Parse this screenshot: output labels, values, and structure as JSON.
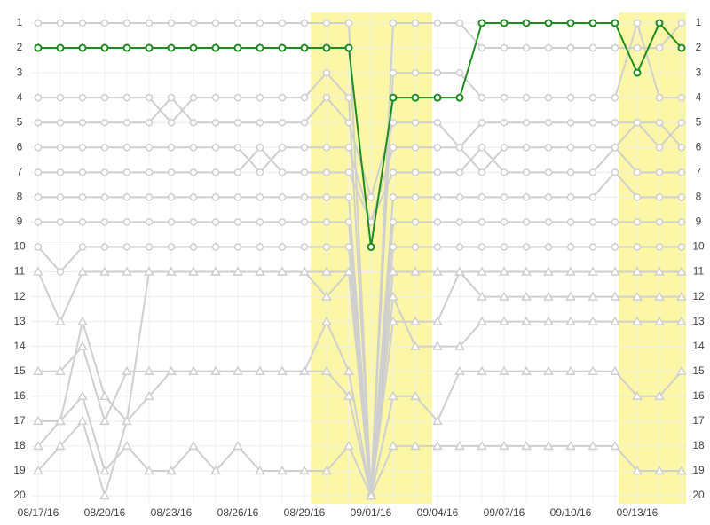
{
  "chart_data": {
    "type": "line",
    "x": [
      "08/17/16",
      null,
      null,
      "08/20/16",
      null,
      null,
      "08/23/16",
      null,
      null,
      "08/26/16",
      null,
      null,
      "08/29/16",
      null,
      null,
      "09/01/16",
      null,
      null,
      "09/04/16",
      null,
      null,
      "09/07/16",
      null,
      null,
      "09/10/16",
      null,
      null,
      "09/13/16",
      null,
      null
    ],
    "ylim": [
      1,
      20
    ],
    "y_inverted": true,
    "yticks": [
      1,
      2,
      3,
      4,
      5,
      6,
      7,
      8,
      9,
      10,
      11,
      12,
      13,
      14,
      15,
      16,
      17,
      18,
      19,
      20
    ],
    "grid": true,
    "series": [
      {
        "color": "#cfcfcf",
        "marker": "circle",
        "values": [
          1,
          1,
          1,
          1,
          1,
          1,
          1,
          1,
          1,
          1,
          1,
          1,
          1,
          1,
          1,
          20,
          1,
          1,
          1,
          1,
          2,
          2,
          2,
          2,
          2,
          2,
          2,
          2,
          2,
          1
        ]
      },
      {
        "color": "#cfcfcf",
        "marker": "circle",
        "values": [
          4,
          4,
          4,
          4,
          4,
          4,
          5,
          4,
          4,
          4,
          4,
          4,
          4,
          3,
          4,
          20,
          3,
          3,
          3,
          3,
          4,
          4,
          4,
          4,
          4,
          4,
          4,
          1,
          4,
          4
        ]
      },
      {
        "color": "#cfcfcf",
        "marker": "circle",
        "values": [
          5,
          5,
          5,
          5,
          5,
          5,
          4,
          5,
          5,
          5,
          5,
          5,
          5,
          4,
          5,
          8,
          5,
          5,
          5,
          6,
          5,
          5,
          5,
          5,
          5,
          5,
          5,
          5,
          6,
          5
        ]
      },
      {
        "color": "#cfcfcf",
        "marker": "circle",
        "values": [
          6,
          6,
          6,
          6,
          6,
          6,
          6,
          6,
          6,
          6,
          7,
          6,
          6,
          6,
          6,
          9,
          6,
          6,
          6,
          6,
          7,
          6,
          6,
          6,
          6,
          6,
          6,
          5,
          5,
          6
        ]
      },
      {
        "color": "#cfcfcf",
        "marker": "circle",
        "values": [
          7,
          7,
          7,
          7,
          7,
          7,
          7,
          7,
          7,
          7,
          6,
          7,
          7,
          7,
          7,
          9,
          7,
          7,
          7,
          7,
          6,
          7,
          7,
          7,
          7,
          7,
          6,
          7,
          7,
          7
        ]
      },
      {
        "color": "#cfcfcf",
        "marker": "circle",
        "values": [
          8,
          8,
          8,
          8,
          8,
          8,
          8,
          8,
          8,
          8,
          8,
          8,
          8,
          8,
          8,
          20,
          8,
          8,
          8,
          8,
          8,
          8,
          8,
          8,
          8,
          8,
          7,
          8,
          8,
          8
        ]
      },
      {
        "color": "#cfcfcf",
        "marker": "circle",
        "values": [
          9,
          9,
          9,
          9,
          9,
          9,
          9,
          9,
          9,
          9,
          9,
          9,
          9,
          9,
          9,
          20,
          9,
          9,
          9,
          9,
          9,
          9,
          9,
          9,
          9,
          9,
          9,
          9,
          9,
          9
        ]
      },
      {
        "color": "#cfcfcf",
        "marker": "circle",
        "values": [
          10,
          11,
          10,
          10,
          10,
          10,
          10,
          10,
          10,
          10,
          10,
          10,
          10,
          10,
          10,
          20,
          10,
          10,
          10,
          10,
          10,
          10,
          10,
          10,
          10,
          10,
          10,
          10,
          10,
          10
        ]
      },
      {
        "color": "#cfcfcf",
        "marker": "triangle",
        "values": [
          11,
          13,
          11,
          11,
          11,
          11,
          11,
          11,
          11,
          11,
          11,
          11,
          11,
          12,
          11,
          20,
          11,
          11,
          11,
          11,
          11,
          11,
          11,
          11,
          11,
          11,
          11,
          11,
          11,
          11
        ]
      },
      {
        "color": "#cfcfcf",
        "marker": "triangle",
        "values": [
          15,
          15,
          14,
          17,
          15,
          15,
          15,
          15,
          15,
          15,
          15,
          15,
          15,
          13,
          15,
          20,
          13,
          13,
          13,
          11,
          12,
          12,
          12,
          12,
          12,
          12,
          12,
          12,
          12,
          12
        ]
      },
      {
        "color": "#cfcfcf",
        "marker": "triangle",
        "values": [
          17,
          17,
          13,
          16,
          17,
          11,
          11,
          11,
          11,
          11,
          11,
          11,
          11,
          11,
          11,
          20,
          12,
          14,
          14,
          14,
          13,
          13,
          13,
          13,
          13,
          13,
          13,
          13,
          13,
          13
        ]
      },
      {
        "color": "#cfcfcf",
        "marker": "triangle",
        "values": [
          18,
          17,
          16,
          19,
          18,
          19,
          19,
          18,
          19,
          18,
          19,
          19,
          19,
          19,
          18,
          20,
          18,
          18,
          18,
          18,
          18,
          18,
          18,
          18,
          18,
          18,
          18,
          19,
          19,
          19
        ]
      },
      {
        "color": "#cfcfcf",
        "marker": "triangle",
        "values": [
          19,
          18,
          17,
          20,
          17,
          16,
          15,
          15,
          15,
          15,
          15,
          15,
          15,
          15,
          16,
          20,
          16,
          16,
          17,
          15,
          15,
          15,
          15,
          15,
          15,
          15,
          15,
          16,
          16,
          15
        ]
      },
      {
        "color": "#1e8c1e",
        "marker": "circle",
        "values": [
          2,
          2,
          2,
          2,
          2,
          2,
          2,
          2,
          2,
          2,
          2,
          2,
          2,
          2,
          2,
          10,
          4,
          4,
          4,
          4,
          1,
          1,
          1,
          1,
          1,
          1,
          1,
          3,
          1,
          2
        ]
      }
    ]
  }
}
